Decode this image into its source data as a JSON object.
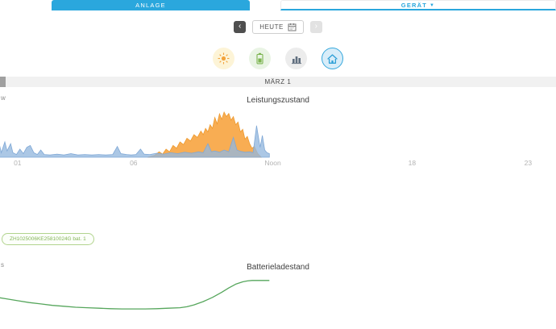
{
  "header": {
    "tab_anlage": "ANLAGE",
    "tab_geraet": "GERÄT",
    "dropdown_arrow": "▼"
  },
  "date_nav": {
    "prev": "‹",
    "today": "HEUTE",
    "next": "›"
  },
  "view_buttons": [
    {
      "icon": "sun-icon",
      "selected": false
    },
    {
      "icon": "battery-icon",
      "selected": false
    },
    {
      "icon": "bar-chart-icon",
      "selected": false
    },
    {
      "icon": "house-icon",
      "selected": true
    }
  ],
  "date_banner": "MÄRZ 1",
  "power_section": {
    "title": "Leistungszustand",
    "y_unit_partial": "w"
  },
  "battery_section": {
    "title": "Batterieladestand",
    "y_unit_partial": "s"
  },
  "device_badge": "ZH1025006KE25810024G bat. 1",
  "colors": {
    "accent_blue": "#2AA7DD",
    "pv_orange": "#F7A440",
    "load_blue": "#93B7DE",
    "soc_green": "#56A65C",
    "badge_green": "#85B45A"
  },
  "chart_data": [
    {
      "type": "area",
      "title": "Leistungszustand",
      "x_unit": "hour",
      "xlim": [
        0,
        24
      ],
      "ylim": [
        0,
        100
      ],
      "grid": false,
      "x_ticks": [
        {
          "hour": 1,
          "label": "01"
        },
        {
          "hour": 6,
          "label": "06"
        },
        {
          "hour": 12,
          "label": "Noon"
        },
        {
          "hour": 18,
          "label": "18"
        },
        {
          "hour": 23,
          "label": "23"
        }
      ],
      "series": [
        {
          "name": "pv-production",
          "color": "#F7A440",
          "stroke": "#ED9A2F",
          "fill_opacity": 0.9,
          "points": [
            [
              6.6,
              0
            ],
            [
              6.9,
              4
            ],
            [
              7.1,
              12
            ],
            [
              7.25,
              7
            ],
            [
              7.4,
              18
            ],
            [
              7.55,
              12
            ],
            [
              7.7,
              26
            ],
            [
              7.85,
              20
            ],
            [
              8.0,
              34
            ],
            [
              8.15,
              28
            ],
            [
              8.3,
              42
            ],
            [
              8.45,
              36
            ],
            [
              8.6,
              50
            ],
            [
              8.75,
              44
            ],
            [
              8.9,
              58
            ],
            [
              9.0,
              50
            ],
            [
              9.1,
              64
            ],
            [
              9.2,
              56
            ],
            [
              9.3,
              72
            ],
            [
              9.4,
              64
            ],
            [
              9.5,
              88
            ],
            [
              9.6,
              74
            ],
            [
              9.7,
              96
            ],
            [
              9.8,
              84
            ],
            [
              9.9,
              100
            ],
            [
              10.0,
              90
            ],
            [
              10.1,
              97
            ],
            [
              10.2,
              82
            ],
            [
              10.3,
              90
            ],
            [
              10.4,
              72
            ],
            [
              10.5,
              78
            ],
            [
              10.6,
              56
            ],
            [
              10.7,
              62
            ],
            [
              10.8,
              40
            ],
            [
              10.9,
              46
            ],
            [
              11.0,
              30
            ],
            [
              11.1,
              20
            ],
            [
              11.2,
              24
            ],
            [
              11.35,
              8
            ],
            [
              11.5,
              0
            ]
          ]
        },
        {
          "name": "consumption",
          "color": "#93B7DE",
          "stroke": "#7FA8D6",
          "fill_opacity": 0.78,
          "points": [
            [
              0,
              28
            ],
            [
              0.1,
              12
            ],
            [
              0.2,
              32
            ],
            [
              0.3,
              10
            ],
            [
              0.45,
              34
            ],
            [
              0.55,
              14
            ],
            [
              0.7,
              30
            ],
            [
              0.8,
              10
            ],
            [
              0.95,
              6
            ],
            [
              1.1,
              18
            ],
            [
              1.25,
              8
            ],
            [
              1.4,
              22
            ],
            [
              1.55,
              26
            ],
            [
              1.7,
              10
            ],
            [
              1.85,
              6
            ],
            [
              2.0,
              16
            ],
            [
              2.15,
              6
            ],
            [
              2.4,
              5
            ],
            [
              2.7,
              7
            ],
            [
              3.0,
              5
            ],
            [
              3.3,
              8
            ],
            [
              3.6,
              5
            ],
            [
              3.9,
              6
            ],
            [
              4.2,
              5
            ],
            [
              4.5,
              6
            ],
            [
              4.8,
              5
            ],
            [
              5.1,
              6
            ],
            [
              5.3,
              24
            ],
            [
              5.45,
              8
            ],
            [
              5.7,
              6
            ],
            [
              5.9,
              5
            ],
            [
              6.1,
              6
            ],
            [
              6.3,
              18
            ],
            [
              6.45,
              7
            ],
            [
              6.7,
              6
            ],
            [
              7.0,
              9
            ],
            [
              7.3,
              7
            ],
            [
              7.6,
              10
            ],
            [
              7.9,
              8
            ],
            [
              8.2,
              11
            ],
            [
              8.5,
              9
            ],
            [
              8.8,
              12
            ],
            [
              9.0,
              10
            ],
            [
              9.2,
              30
            ],
            [
              9.35,
              12
            ],
            [
              9.5,
              14
            ],
            [
              9.7,
              11
            ],
            [
              9.9,
              16
            ],
            [
              10.1,
              12
            ],
            [
              10.3,
              44
            ],
            [
              10.45,
              16
            ],
            [
              10.6,
              13
            ],
            [
              10.8,
              11
            ],
            [
              11.0,
              12
            ],
            [
              11.15,
              10
            ],
            [
              11.3,
              70
            ],
            [
              11.45,
              22
            ],
            [
              11.55,
              48
            ],
            [
              11.65,
              16
            ],
            [
              11.75,
              10
            ],
            [
              11.85,
              8
            ]
          ]
        }
      ]
    },
    {
      "type": "line",
      "title": "Batterieladestand",
      "x_unit": "hour",
      "xlim": [
        0,
        24
      ],
      "ylim": [
        0,
        100
      ],
      "grid": false,
      "series": [
        {
          "name": "battery-soc",
          "color": "#56A65C",
          "points": [
            [
              0,
              58
            ],
            [
              0.5,
              54
            ],
            [
              1,
              50
            ],
            [
              1.5,
              46
            ],
            [
              2,
              43
            ],
            [
              2.5,
              40
            ],
            [
              3,
              38
            ],
            [
              3.5,
              36
            ],
            [
              4,
              35
            ],
            [
              4.5,
              34
            ],
            [
              5,
              33
            ],
            [
              5.5,
              32.5
            ],
            [
              6,
              32.5
            ],
            [
              6.5,
              32.5
            ],
            [
              7,
              33
            ],
            [
              7.5,
              34
            ],
            [
              8,
              35
            ],
            [
              8.3,
              37
            ],
            [
              8.6,
              41
            ],
            [
              9,
              48
            ],
            [
              9.4,
              57
            ],
            [
              9.8,
              68
            ],
            [
              10.1,
              77
            ],
            [
              10.4,
              85
            ],
            [
              10.7,
              90
            ],
            [
              10.9,
              92
            ],
            [
              11.1,
              93
            ],
            [
              11.4,
              93
            ],
            [
              11.7,
              93
            ],
            [
              11.85,
              93
            ]
          ]
        }
      ]
    }
  ]
}
